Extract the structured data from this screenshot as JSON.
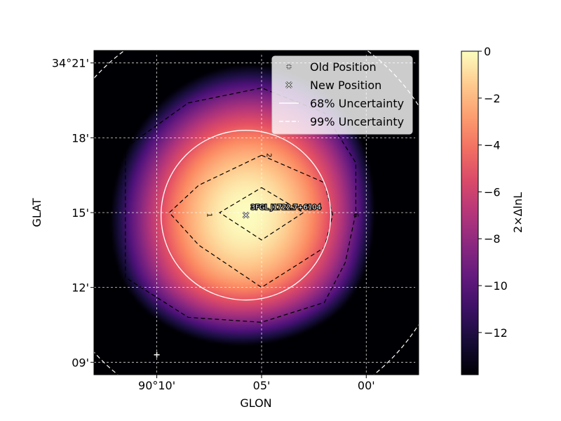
{
  "chart_data": {
    "type": "heatmap",
    "title": "",
    "xlabel": "GLON",
    "ylabel": "GLAT",
    "colorbar_label": "2×ΔlnL",
    "colormap": "magma",
    "grid": true,
    "legend_position": "top-right",
    "x_range_deg": [
      90.2167,
      89.9583
    ],
    "y_range_deg": [
      34.1417,
      34.3583
    ],
    "x_ticks": [
      {
        "label": "90°10'",
        "value": 90.1667
      },
      {
        "label": "05'",
        "value": 90.0833
      },
      {
        "label": "00'",
        "value": 90.0
      }
    ],
    "y_ticks": [
      {
        "label": "34°21'",
        "value": 34.35
      },
      {
        "label": "18'",
        "value": 34.3
      },
      {
        "label": "15'",
        "value": 34.25
      },
      {
        "label": "12'",
        "value": 34.2
      },
      {
        "label": "09'",
        "value": 34.15
      }
    ],
    "colorbar_range": [
      -13.8,
      0
    ],
    "colorbar_ticks": [
      "0",
      "−2",
      "−4",
      "−6",
      "−8",
      "−10",
      "−12"
    ],
    "colorbar_tick_values": [
      0,
      -2,
      -4,
      -6,
      -8,
      -10,
      -12
    ],
    "best_fit": {
      "glon": 90.0958,
      "glat": 34.2483
    },
    "tsmap_model": {
      "quad_a": 3.7,
      "quad_b": 3.0,
      "quad_c": 0.25,
      "gradient_sx": 5.0,
      "gradient_sy": 6.5
    },
    "sources": [
      {
        "name": "Old Position",
        "glon": 90.1667,
        "glat": 34.155,
        "marker": "plus"
      },
      {
        "name": "New Position",
        "glon": 90.0958,
        "glat": 34.2483,
        "marker": "x"
      }
    ],
    "source_label": "3FGL J1722.7+6104",
    "uncertainty_68_radius_deg": 0.0567,
    "uncertainty_99_radius_deg": 0.1367,
    "contours": [
      {
        "level": "2",
        "label_at": {
          "glon": 90.0775,
          "glat": 34.2883
        },
        "points": [
          {
            "glon": 90.0833,
            "glat": 34.2667
          },
          {
            "glon": 90.05,
            "glat": 34.25
          },
          {
            "glon": 90.0833,
            "glat": 34.2317
          },
          {
            "glon": 90.1167,
            "glat": 34.25
          }
        ]
      },
      {
        "level": "1",
        "label_at": {
          "glon": 90.125,
          "glat": 34.2483
        },
        "points": [
          {
            "glon": 90.0833,
            "glat": 34.2883
          },
          {
            "glon": 90.0333,
            "glat": 34.27
          },
          {
            "glon": 90.0267,
            "glat": 34.2483
          },
          {
            "glon": 90.0333,
            "glat": 34.2267
          },
          {
            "glon": 90.0833,
            "glat": 34.2
          },
          {
            "glon": 90.1333,
            "glat": 34.2283
          },
          {
            "glon": 90.1567,
            "glat": 34.25
          },
          {
            "glon": 90.1333,
            "glat": 34.2683
          }
        ]
      },
      {
        "level": "6",
        "label_at": {
          "glon": 90.0083,
          "glat": 34.2483
        },
        "points": [
          {
            "glon": 90.1917,
            "glat": 34.2933
          },
          {
            "glon": 90.1417,
            "glat": 34.3233
          },
          {
            "glon": 90.0833,
            "glat": 34.3333
          },
          {
            "glon": 90.0333,
            "glat": 34.3167
          },
          {
            "glon": 90.0083,
            "glat": 34.2833
          },
          {
            "glon": 90.0083,
            "glat": 34.25
          },
          {
            "glon": 90.0167,
            "glat": 34.2167
          },
          {
            "glon": 90.0333,
            "glat": 34.19
          },
          {
            "glon": 90.0833,
            "glat": 34.1767
          },
          {
            "glon": 90.1417,
            "glat": 34.18
          },
          {
            "glon": 90.1917,
            "glat": 34.2067
          }
        ]
      },
      {
        "level": "9",
        "label_at": {
          "glon": 89.9917,
          "glat": 34.2083
        },
        "points": [
          {
            "glon": 90.0333,
            "glat": 34.1617
          },
          {
            "glon": 89.9917,
            "glat": 34.205
          }
        ]
      },
      {
        "level": "",
        "points": [
          {
            "glon": 90.1917,
            "glat": 34.1617
          },
          {
            "glon": 90.19,
            "glat": 34.1617
          }
        ]
      }
    ]
  },
  "legend": {
    "items": [
      {
        "label": "Old Position",
        "marker": "plus"
      },
      {
        "label": "New Position",
        "marker": "x"
      },
      {
        "label": "68% Uncertainty",
        "line": "solid"
      },
      {
        "label": "99% Uncertainty",
        "line": "dashed"
      }
    ]
  }
}
